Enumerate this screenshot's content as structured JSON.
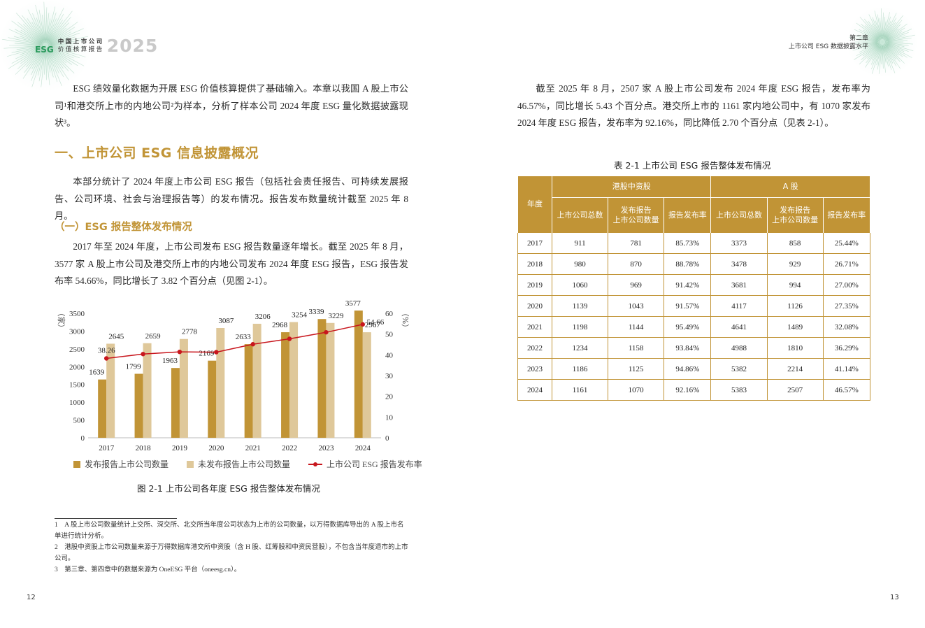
{
  "header": {
    "brand_badge": "ESG",
    "brand_line1": "中国上市公司",
    "brand_line2": "价值核算报告",
    "brand_year": "2025",
    "chapter": "第二章",
    "chapter_title": "上市公司 ESG 数据披露水平"
  },
  "left_page": {
    "intro_paragraph": "ESG 绩效量化数据为开展 ESG 价值核算提供了基础输入。本章以我国 A 股上市公司¹和港交所上市的内地公司²为样本，分析了样本公司 2024 年度 ESG 量化数据披露现状³。",
    "section_heading": "一、上市公司 ESG 信息披露概况",
    "section_paragraph": "本部分统计了 2024 年度上市公司 ESG 报告（包括社会责任报告、可持续发展报告、公司环境、社会与治理报告等）的发布情况。报告发布数量统计截至 2025 年 8 月。",
    "subsection_heading": "（一）ESG 报告整体发布情况",
    "subsection_paragraph": "2017 年至 2024 年度，上市公司发布 ESG 报告数量逐年增长。截至 2025 年 8 月，3577 家 A 股上市公司及港交所上市的内地公司发布 2024 年度 ESG 报告，ESG 报告发布率 54.66%，同比增长了 3.82 个百分点（见图 2-1）。",
    "figure_caption": "图 2-1 上市公司各年度 ESG 报告整体发布情况",
    "footnotes": [
      "1　A 股上市公司数量统计上交所、深交所、北交所当年度公司状态为上市的公司数量，以万得数据库导出的 A 股上市名单进行统计分析。",
      "2　港股中资股上市公司数量来源于万得数据库港交所中资股（含 H 股、红筹股和中资民营股），不包含当年度退市的上市公司。",
      "3　第三章、第四章中的数据来源为 OneESG 平台（oneesg.cn）。"
    ],
    "page_number": "12"
  },
  "right_page": {
    "paragraph": "截至 2025 年 8 月，2507 家 A 股上市公司发布 2024 年度 ESG 报告，发布率为 46.57%，同比增长 5.43 个百分点。港交所上市的 1161 家内地公司中，有 1070 家发布 2024 年度 ESG 报告，发布率为 92.16%，同比降低 2.70 个百分点（见表 2-1）。",
    "table_caption": "表 2-1 上市公司 ESG 报告整体发布情况",
    "table": {
      "year_header": "年度",
      "group_headers": [
        "港股中资股",
        "A 股"
      ],
      "sub_headers": [
        "上市公司总数",
        "发布报告\n上市公司数量",
        "报告发布率",
        "上市公司总数",
        "发布报告\n上市公司数量",
        "报告发布率"
      ],
      "rows": [
        [
          "2017",
          "911",
          "781",
          "85.73%",
          "3373",
          "858",
          "25.44%"
        ],
        [
          "2018",
          "980",
          "870",
          "88.78%",
          "3478",
          "929",
          "26.71%"
        ],
        [
          "2019",
          "1060",
          "969",
          "91.42%",
          "3681",
          "994",
          "27.00%"
        ],
        [
          "2020",
          "1139",
          "1043",
          "91.57%",
          "4117",
          "1126",
          "27.35%"
        ],
        [
          "2021",
          "1198",
          "1144",
          "95.49%",
          "4641",
          "1489",
          "32.08%"
        ],
        [
          "2022",
          "1234",
          "1158",
          "93.84%",
          "4988",
          "1810",
          "36.29%"
        ],
        [
          "2023",
          "1186",
          "1125",
          "94.86%",
          "5382",
          "2214",
          "41.14%"
        ],
        [
          "2024",
          "1161",
          "1070",
          "92.16%",
          "5383",
          "2507",
          "46.57%"
        ]
      ]
    },
    "page_number": "13"
  },
  "colors": {
    "gold": "#c19436",
    "light_gold": "#dfc89a",
    "line_red": "#c8161d",
    "brand_green": "#2a9a5c"
  },
  "chart_data": {
    "type": "bar",
    "title": "图 2-1 上市公司各年度 ESG 报告整体发布情况",
    "categories": [
      "2017",
      "2018",
      "2019",
      "2020",
      "2021",
      "2022",
      "2023",
      "2024"
    ],
    "series": [
      {
        "name": "发布报告上市公司数量",
        "type": "bar",
        "axis": "left",
        "color": "#c19436",
        "values": [
          1639,
          1799,
          1963,
          2169,
          2633,
          2968,
          3339,
          3577
        ]
      },
      {
        "name": "未发布报告上市公司数量",
        "type": "bar",
        "axis": "left",
        "color": "#dfc89a",
        "values": [
          2645,
          2659,
          2778,
          3087,
          3206,
          3254,
          3229,
          2967
        ]
      },
      {
        "name": "上市公司 ESG 报告发布率",
        "type": "line",
        "axis": "right",
        "color": "#c8161d",
        "values": [
          38.26,
          40.35,
          41.4,
          41.27,
          45.09,
          47.7,
          50.84,
          54.66
        ],
        "labeled_points": {
          "2017": "38.26",
          "2024": "54.66"
        }
      }
    ],
    "ylabel": "（家）",
    "y2label": "（%）",
    "ylim": [
      0,
      3500
    ],
    "yticks": [
      0,
      500,
      1000,
      1500,
      2000,
      2500,
      3000,
      3500
    ],
    "y2lim": [
      0,
      60
    ],
    "y2ticks": [
      0,
      10,
      20,
      30,
      40,
      50,
      60
    ],
    "grid": false,
    "legend_position": "bottom"
  }
}
